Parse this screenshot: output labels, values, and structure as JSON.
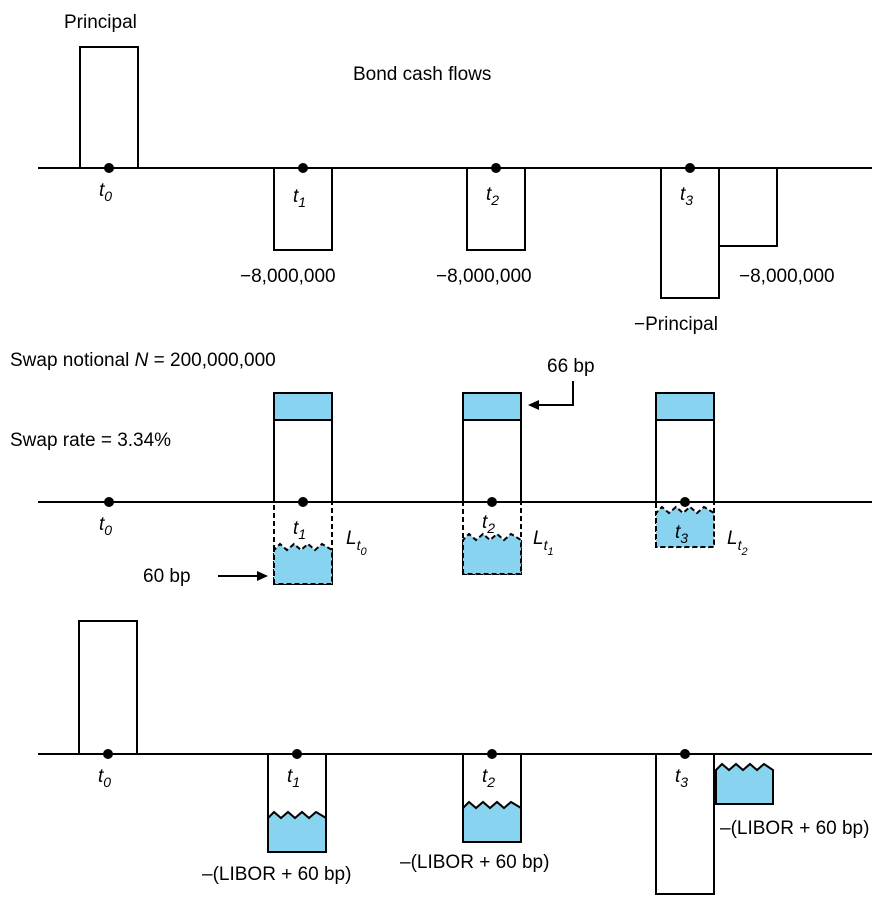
{
  "top": {
    "principal_label": "Principal",
    "title": "Bond cash flows",
    "coupon_1": "−8,000,000",
    "coupon_2": "−8,000,000",
    "coupon_3": "−8,000,000",
    "neg_principal": "−Principal"
  },
  "middle": {
    "notional_label": "Swap notional ",
    "notional_var": "N",
    "notional_value": " = 200,000,000",
    "swap_rate": "Swap rate = 3.34%",
    "spread_label": "66 bp",
    "libor_spread_label": "60 bp",
    "libor_var": "L"
  },
  "bottom": {
    "libor_label_1": "–(LIBOR + 60 bp)",
    "libor_label_2": "–(LIBOR + 60 bp)",
    "libor_label_3": "–(LIBOR + 60 bp)"
  },
  "time": {
    "t": "t",
    "sub0": "0",
    "sub1": "1",
    "sub2": "2",
    "sub3": "3"
  },
  "colors": {
    "fill_blue": "#87d3f0",
    "line": "#000000"
  }
}
